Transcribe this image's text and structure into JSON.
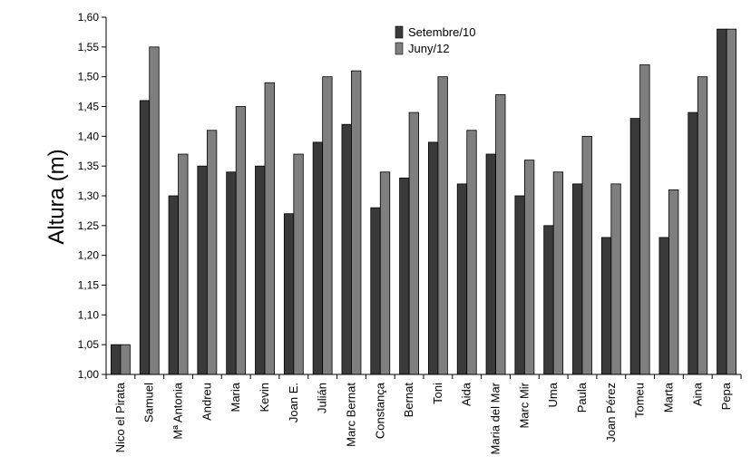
{
  "chart_data": {
    "type": "bar",
    "title": "",
    "xlabel": "",
    "ylabel": "Altura (m)",
    "ylim": [
      1.0,
      1.6
    ],
    "ytick_step": 0.05,
    "grid": false,
    "legend_position": "top-center",
    "categories": [
      "Nico el Pirata",
      "Samuel",
      "Mª Antonia",
      "Andreu",
      "Maria",
      "Kevin",
      "Joan E.",
      "Julián",
      "Marc Bernat",
      "Constança",
      "Bernat",
      "Toni",
      "Aida",
      "Maria del Mar",
      "Marc Mir",
      "Uma",
      "Paula",
      "Joan Pérez",
      "Tomeu",
      "Marta",
      "Aina",
      "Pepa"
    ],
    "series": [
      {
        "name": "Setembre/10",
        "color": "#3a3a3a",
        "values": [
          1.05,
          1.46,
          1.3,
          1.35,
          1.34,
          1.35,
          1.27,
          1.39,
          1.42,
          1.28,
          1.33,
          1.39,
          1.32,
          1.37,
          1.3,
          1.25,
          1.32,
          1.23,
          1.43,
          1.23,
          1.44,
          1.58
        ]
      },
      {
        "name": "Juny/12",
        "color": "#7f7f7f",
        "values": [
          1.05,
          1.55,
          1.37,
          1.41,
          1.45,
          1.49,
          1.37,
          1.5,
          1.51,
          1.34,
          1.44,
          1.5,
          1.41,
          1.47,
          1.36,
          1.34,
          1.4,
          1.32,
          1.52,
          1.31,
          1.5,
          1.58
        ]
      }
    ]
  }
}
